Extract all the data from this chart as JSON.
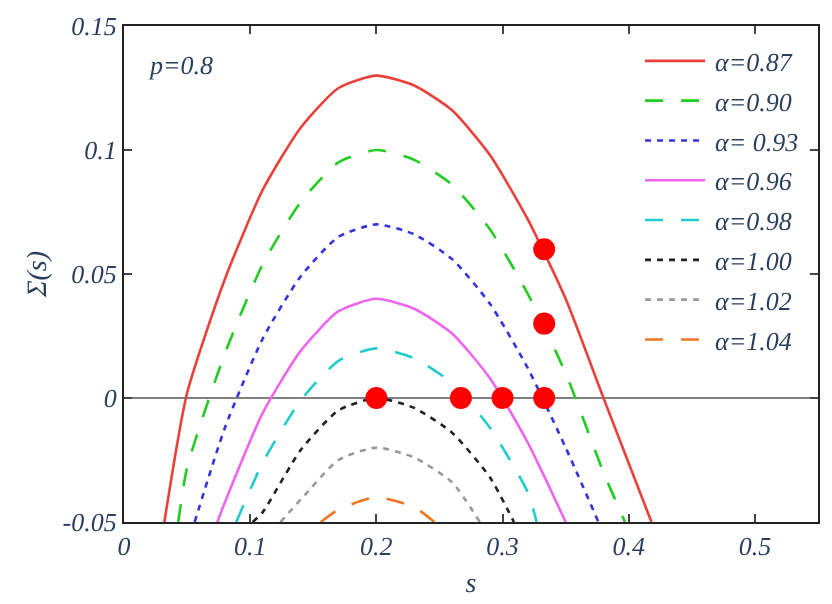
{
  "chart_data": {
    "type": "line",
    "xlabel": "s",
    "ylabel": "Σ(s)",
    "xlim": [
      0,
      0.55
    ],
    "xticks": [
      0,
      0.1,
      0.2,
      0.3,
      0.4,
      0.5
    ],
    "ylim": [
      -0.05,
      0.15
    ],
    "yticks": [
      -0.05,
      0,
      0.05,
      0.1,
      0.15
    ],
    "grid": false,
    "legend": "top right",
    "marker": "none",
    "annotations": [
      "p=0.8"
    ],
    "ref_lines": [
      {
        "axis": "y",
        "value": 0,
        "color": "#808080"
      }
    ],
    "series": [
      {
        "name": "α=0.87",
        "color": "#e8413c",
        "line_style": "solid",
        "x": [
          0.032,
          0.05,
          0.08,
          0.11,
          0.14,
          0.17,
          0.2,
          0.23,
          0.26,
          0.29,
          0.32,
          0.35,
          0.38,
          0.418
        ],
        "values": [
          -0.05,
          0.002,
          0.048,
          0.084,
          0.109,
          0.125,
          0.13,
          0.126,
          0.116,
          0.098,
          0.072,
          0.04,
          0,
          -0.05
        ]
      },
      {
        "name": "α=0.90",
        "color": "#22cc22",
        "line_style": "dashed",
        "x": [
          0.043,
          0.05,
          0.08,
          0.11,
          0.14,
          0.17,
          0.2,
          0.23,
          0.26,
          0.29,
          0.32,
          0.35,
          0.38,
          0.397
        ],
        "values": [
          -0.05,
          -0.028,
          0.018,
          0.054,
          0.079,
          0.095,
          0.1,
          0.096,
          0.086,
          0.068,
          0.042,
          0.01,
          -0.03,
          -0.05
        ]
      },
      {
        "name": "α= 0.93",
        "color": "#3333dd",
        "line_style": "dotted",
        "x": [
          0.056,
          0.08,
          0.11,
          0.14,
          0.17,
          0.2,
          0.23,
          0.26,
          0.29,
          0.32,
          0.35,
          0.376
        ],
        "values": [
          -0.05,
          -0.012,
          0.024,
          0.049,
          0.065,
          0.07,
          0.066,
          0.056,
          0.038,
          0.012,
          -0.02,
          -0.05
        ]
      },
      {
        "name": "α=0.96",
        "color": "#ee66ee",
        "line_style": "solid",
        "x": [
          0.074,
          0.08,
          0.11,
          0.14,
          0.17,
          0.2,
          0.23,
          0.26,
          0.29,
          0.32,
          0.35
        ],
        "values": [
          -0.05,
          -0.042,
          -0.006,
          0.019,
          0.035,
          0.04,
          0.036,
          0.026,
          0.008,
          -0.018,
          -0.05
        ]
      },
      {
        "name": "α=0.98",
        "color": "#22cccc",
        "line_style": "dashed",
        "x": [
          0.089,
          0.11,
          0.14,
          0.17,
          0.2,
          0.23,
          0.26,
          0.29,
          0.32,
          0.327
        ],
        "values": [
          -0.05,
          -0.026,
          -0.001,
          0.015,
          0.02,
          0.016,
          0.006,
          -0.012,
          -0.038,
          -0.05
        ]
      },
      {
        "name": "α=1.00",
        "color": "#222222",
        "line_style": "dotted",
        "x": [
          0.102,
          0.11,
          0.14,
          0.17,
          0.2,
          0.23,
          0.26,
          0.29,
          0.309
        ],
        "values": [
          -0.05,
          -0.046,
          -0.021,
          -0.005,
          0,
          -0.004,
          -0.014,
          -0.032,
          -0.05
        ]
      },
      {
        "name": "α=1.02",
        "color": "#999999",
        "line_style": "dotted",
        "x": [
          0.124,
          0.14,
          0.17,
          0.2,
          0.23,
          0.26,
          0.282
        ],
        "values": [
          -0.05,
          -0.041,
          -0.025,
          -0.02,
          -0.024,
          -0.034,
          -0.05
        ]
      },
      {
        "name": "α=1.04",
        "color": "#ee7722",
        "line_style": "dashed",
        "x": [
          0.156,
          0.17,
          0.2,
          0.23,
          0.246
        ],
        "values": [
          -0.05,
          -0.045,
          -0.04,
          -0.044,
          -0.05
        ]
      },
      {
        "type": "scatter",
        "color": "#ff0000",
        "marker": "circle",
        "x": [
          0.333,
          0.333,
          0.2,
          0.267,
          0.3,
          0.333
        ],
        "values": [
          0.06,
          0.03,
          0,
          0,
          0,
          0
        ]
      }
    ]
  }
}
